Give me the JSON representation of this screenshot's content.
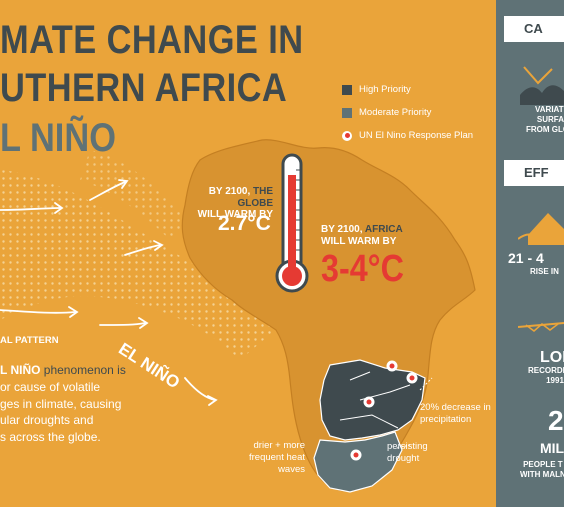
{
  "header": {
    "title_line1": "MATE CHANGE IN",
    "title_line2": "UTHERN AFRICA",
    "title_line3": "L NIÑO"
  },
  "legend": {
    "items": [
      {
        "label": "High Priority",
        "color": "#3f4a4e"
      },
      {
        "label": "Moderate Priority",
        "color": "#5f7276"
      },
      {
        "label": "UN El Nino Response Plan",
        "color": "#e53a33"
      }
    ]
  },
  "globe": {
    "prefix": "BY 2100, ",
    "highlight": "THE GLOBE",
    "suffix": "WILL WARM BY",
    "value": "2.7°C"
  },
  "africa": {
    "prefix": "BY 2100, ",
    "highlight": "AFRICA",
    "suffix": "WILL WARM BY",
    "value": "3-4°C"
  },
  "map": {
    "elnino_label": "EL NIÑO",
    "pattern_label": "AL PATTERN",
    "notes": {
      "precip": "20% decrease in precipitation",
      "heat": "drier + more frequent heat waves",
      "drought": "persisting drought"
    }
  },
  "description": {
    "line1_highlight": "L NIÑO",
    "line1_rest": " phenomenon is",
    "line2": "or cause of volatile",
    "line3": "ges in climate, causing",
    "line4": "ular droughts and",
    "line5": "s across the globe."
  },
  "sidebar": {
    "causes_title": "CA",
    "causes_text": [
      "VARIATI",
      "SURFA",
      "FROM GLOB"
    ],
    "effects_title": "EFF",
    "rise_num": "21 - 4",
    "rise_text": "RISE IN",
    "record_num": "LON",
    "record_text": [
      "RECORDE",
      "1991"
    ],
    "people_num": "2",
    "people_unit": "MIL",
    "people_text": [
      "PEOPLE T",
      "WITH MALN"
    ]
  },
  "colors": {
    "background": "#eaa43a",
    "dark": "#3f4a4e",
    "moderate": "#5f7276",
    "red": "#e53a33"
  }
}
